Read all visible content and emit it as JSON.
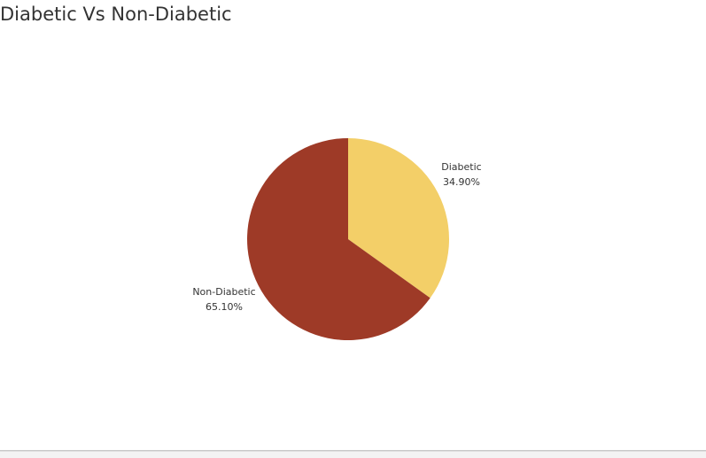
{
  "title": "Diabetic Vs Non-Diabetic",
  "chart_data": {
    "type": "pie",
    "title": "Diabetic Vs Non-Diabetic",
    "slices": [
      {
        "label": "Diabetic",
        "value": 34.9,
        "display": "34.90%",
        "color": "#f3cf68"
      },
      {
        "label": "Non-Diabetic",
        "value": 65.1,
        "display": "65.10%",
        "color": "#9e3a27"
      }
    ],
    "start_angle": "12 o'clock",
    "direction": "clockwise",
    "legend": "none",
    "labels": "outside"
  }
}
